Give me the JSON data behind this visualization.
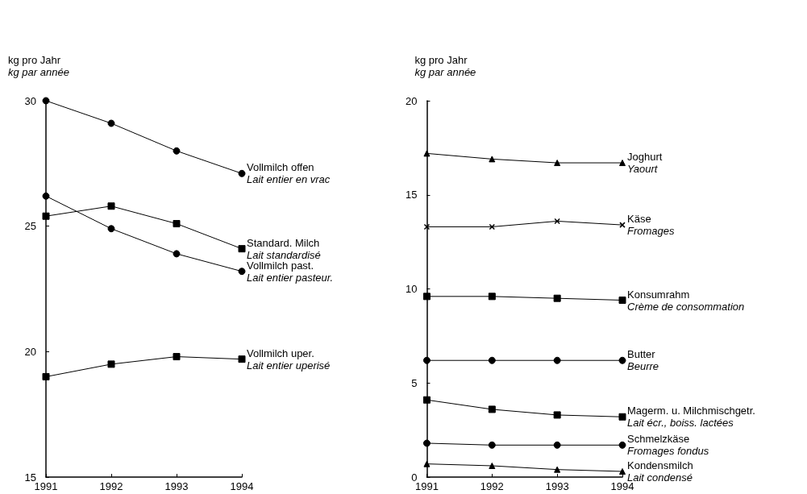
{
  "chart_data": [
    {
      "type": "line",
      "ylabel": "kg pro Jahr\nkg par année",
      "categories": [
        "1991",
        "1992",
        "1993",
        "1994"
      ],
      "ylim": [
        15,
        30
      ],
      "yticks": [
        15,
        20,
        25,
        30
      ],
      "series": [
        {
          "name": "Vollmilch offen\nLait entier en vrac",
          "color": "#000000",
          "marker": "circle",
          "values": [
            30.0,
            29.1,
            28.0,
            27.1
          ]
        },
        {
          "name": "Standard. Milch\nLait standardisé",
          "color": "#000000",
          "marker": "square",
          "values": [
            25.4,
            25.8,
            25.1,
            24.1
          ]
        },
        {
          "name": "Vollmilch past.\nLait entier pasteur.",
          "color": "#000000",
          "marker": "circle",
          "values": [
            26.2,
            24.9,
            23.9,
            23.2
          ]
        },
        {
          "name": "Vollmilch uper.\nLait entier uperisé",
          "color": "#000000",
          "marker": "square",
          "values": [
            19.0,
            19.5,
            19.8,
            19.7
          ]
        }
      ]
    },
    {
      "type": "line",
      "ylabel": "kg pro Jahr\nkg par année",
      "categories": [
        "1991",
        "1992",
        "1993",
        "1994"
      ],
      "ylim": [
        0,
        20
      ],
      "yticks": [
        0,
        5,
        10,
        15,
        20
      ],
      "series": [
        {
          "name": "Joghurt\nYaourt",
          "color": "#000000",
          "marker": "triangle",
          "values": [
            17.2,
            16.9,
            16.7,
            16.7
          ]
        },
        {
          "name": "Käse\nFromages",
          "color": "#000000",
          "marker": "cross",
          "values": [
            13.3,
            13.3,
            13.6,
            13.4
          ]
        },
        {
          "name": "Konsumrahm\nCrème de consommation",
          "color": "#000000",
          "marker": "square",
          "values": [
            9.6,
            9.6,
            9.5,
            9.4
          ]
        },
        {
          "name": "Butter\nBeurre",
          "color": "#000000",
          "marker": "circle",
          "values": [
            6.2,
            6.2,
            6.2,
            6.2
          ]
        },
        {
          "name": "Magerm. u. Milchmischgetr.\nLait écr., boiss. lactées",
          "color": "#000000",
          "marker": "square",
          "values": [
            4.1,
            3.6,
            3.3,
            3.2
          ]
        },
        {
          "name": "Schmelzkäse\nFromages fondus",
          "color": "#000000",
          "marker": "circle",
          "values": [
            1.8,
            1.7,
            1.7,
            1.7
          ]
        },
        {
          "name": "Kondensmilch\nLait condensé",
          "color": "#000000",
          "marker": "triangle",
          "values": [
            0.7,
            0.6,
            0.4,
            0.3
          ]
        }
      ]
    }
  ]
}
